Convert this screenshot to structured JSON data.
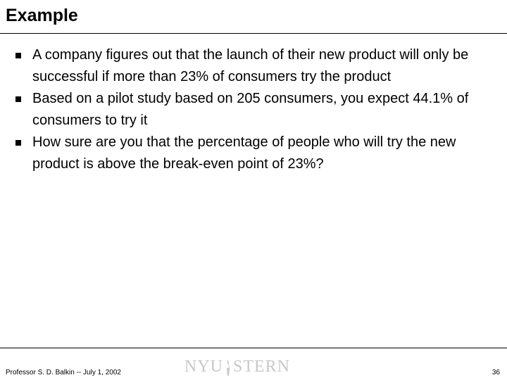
{
  "header": {
    "title": "Example"
  },
  "bullets": [
    "A company figures out that the launch of their new product will only be successful if more than 23% of consumers try the product",
    "Based on a pilot study based on 205 consumers, you expect 44.1% of consumers to try it",
    "How sure are you that the percentage of people who will try the new product is above the break-even point of 23%?"
  ],
  "footer": {
    "author": "Professor S. D. Balkin -- July 1, 2002",
    "logo": {
      "left": "NYU",
      "right": "STERN"
    },
    "page": "36"
  }
}
